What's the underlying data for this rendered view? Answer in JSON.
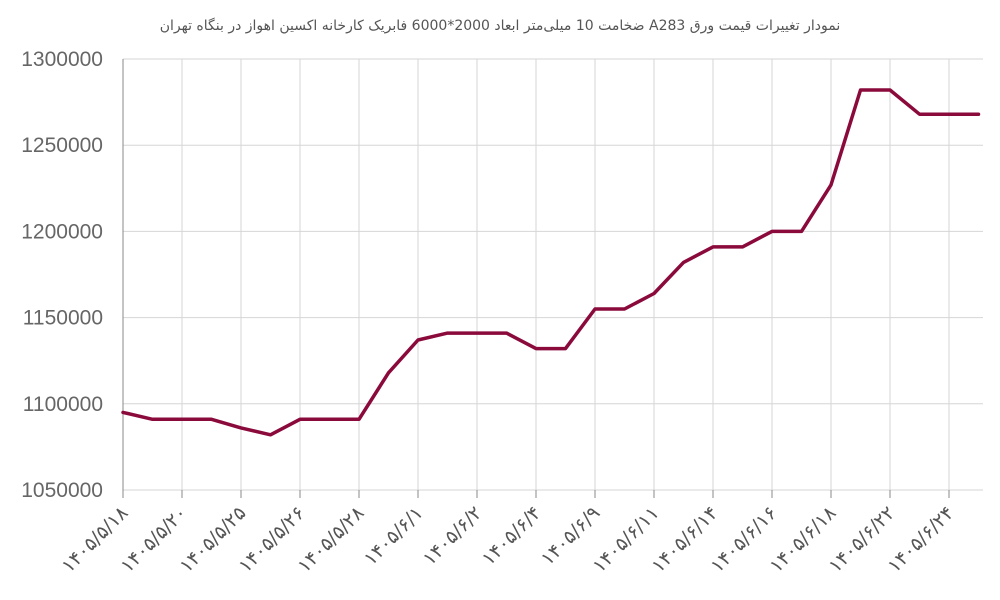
{
  "chart_data": {
    "type": "line",
    "title": "نمودار تغییرات قیمت ورق A283  ضخامت 10 میلی‌متر ابعاد 2000*6000 فابریک کارخانه اکسین اهواز در بنگاه تهران",
    "xlabel": "",
    "ylabel": "",
    "ylim": [
      1050000,
      1300000
    ],
    "yticks": [
      "1050000",
      "1100000",
      "1150000",
      "1200000",
      "1250000",
      "1300000"
    ],
    "grid": true,
    "x": [
      "۱۴۰۵/۵/۱۸",
      "",
      "۱۴۰۵/۵/۲۰",
      "",
      "۱۴۰۵/۵/۲۵",
      "",
      "۱۴۰۵/۵/۲۶",
      "",
      "۱۴۰۵/۵/۲۸",
      "",
      "۱۴۰۵/۶/۱",
      "",
      "۱۴۰۵/۶/۲",
      "",
      "۱۴۰۵/۶/۴",
      "",
      "۱۴۰۵/۶/۹",
      "",
      "۱۴۰۵/۶/۱۱",
      "",
      "۱۴۰۵/۶/۱۴",
      "",
      "۱۴۰۵/۶/۱۶",
      "",
      "۱۴۰۵/۶/۱۸",
      "",
      "۱۴۰۵/۶/۲۲",
      "",
      "۱۴۰۵/۶/۲۴",
      ""
    ],
    "series": [
      {
        "color": "#8b0a3c",
        "values": [
          1095000,
          1091000,
          1091000,
          1091000,
          1086000,
          1082000,
          1091000,
          1091000,
          1091000,
          1118000,
          1137000,
          1141000,
          1141000,
          1141000,
          1132000,
          1132000,
          1155000,
          1155000,
          1164000,
          1182000,
          1191000,
          1191000,
          1200000,
          1200000,
          1227000,
          1282000,
          1282000,
          1268000,
          1268000,
          1268000
        ]
      }
    ]
  }
}
